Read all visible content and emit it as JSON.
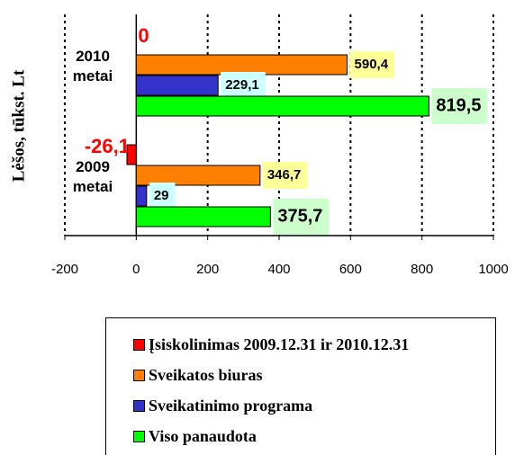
{
  "chart_data": {
    "type": "hbar",
    "y_label": "Lėšos, tūkst. Lt",
    "categories": [
      "2010 metai",
      "2009 metai"
    ],
    "series": [
      {
        "name": "Įsiskolinimas 2009.12.31 ir 2010.12.31",
        "color": "#ff0000",
        "values": [
          0,
          -26.1
        ],
        "value_labels": [
          "0",
          "-26,1"
        ]
      },
      {
        "name": "Sveikatos biuras",
        "color": "#ff8000",
        "values": [
          590.4,
          346.7
        ],
        "value_labels": [
          "590,4",
          "346,7"
        ]
      },
      {
        "name": "Sveikatinimo programa",
        "color": "#3333cc",
        "values": [
          229.1,
          29
        ],
        "value_labels": [
          "229,1",
          "29"
        ]
      },
      {
        "name": "Viso panaudota",
        "color": "#00ff00",
        "values": [
          819.5,
          375.7
        ],
        "value_labels": [
          "819,5",
          "375,7"
        ]
      }
    ],
    "xlim": [
      -200,
      1000
    ],
    "xticks": [
      -200,
      0,
      200,
      400,
      600,
      800,
      1000
    ],
    "grid": true
  }
}
